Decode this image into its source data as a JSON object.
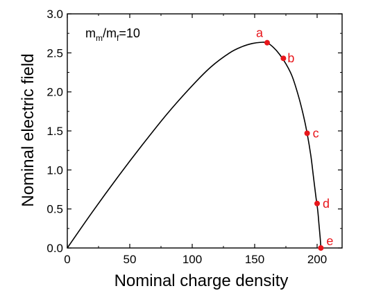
{
  "chart_data": {
    "type": "line",
    "title": "",
    "xlabel": "Nominal charge density",
    "ylabel": "Nominal electric field",
    "xlim": [
      0,
      220
    ],
    "ylim": [
      0,
      3.0
    ],
    "x_ticks": [
      0,
      50,
      100,
      150,
      200
    ],
    "y_ticks": [
      0.0,
      0.5,
      1.0,
      1.5,
      2.0,
      2.5,
      3.0
    ],
    "x_tick_labels": [
      "0",
      "50",
      "100",
      "150",
      "200"
    ],
    "y_tick_labels": [
      "0.0",
      "0.5",
      "1.0",
      "1.5",
      "2.0",
      "2.5",
      "3.0"
    ],
    "grid": false,
    "annotation": {
      "text_main": "m",
      "sub1": "m",
      "slash": "/m",
      "sub2": "f",
      "suffix": "=10"
    },
    "series": [
      {
        "color": "#000000",
        "x": [
          0,
          20,
          40,
          60,
          80,
          100,
          115,
          130,
          140,
          148,
          155,
          160,
          165,
          170,
          175,
          180,
          185,
          189,
          192,
          195,
          197,
          199,
          200.5,
          201.5,
          202.5,
          203
        ],
        "y": [
          0,
          0.46,
          0.9,
          1.32,
          1.72,
          2.08,
          2.32,
          2.5,
          2.58,
          2.62,
          2.635,
          2.63,
          2.57,
          2.48,
          2.36,
          2.2,
          1.95,
          1.7,
          1.47,
          1.18,
          0.92,
          0.66,
          0.48,
          0.3,
          0.12,
          0.0
        ]
      }
    ],
    "points": [
      {
        "label": "a",
        "x": 160,
        "y": 2.63
      },
      {
        "label": "b",
        "x": 173,
        "y": 2.43
      },
      {
        "label": "c",
        "x": 192,
        "y": 1.47
      },
      {
        "label": "d",
        "x": 200,
        "y": 0.57
      },
      {
        "label": "e",
        "x": 203,
        "y": 0.0
      }
    ],
    "point_color": "#e8161b"
  }
}
